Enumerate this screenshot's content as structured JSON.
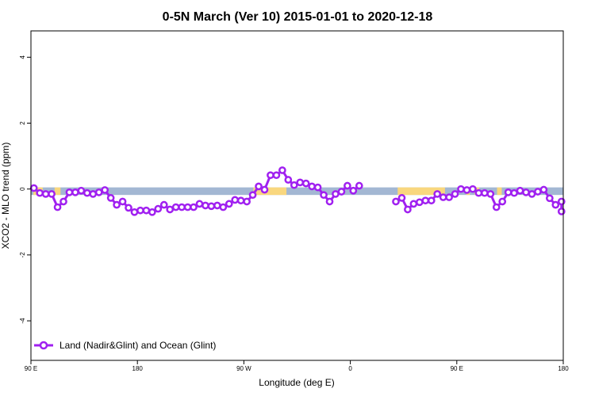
{
  "chart_data": {
    "type": "line",
    "title": "0-5N March (Ver 10)   2015-01-01 to 2020-12-18",
    "xlabel": "Longitude (deg E)",
    "ylabel": "XCO2 - MLO trend (ppm)",
    "xlim": [
      90,
      540
    ],
    "ylim": [
      -5.2,
      4.8
    ],
    "x_ticks": [
      {
        "value": 90,
        "label": "90 E"
      },
      {
        "value": 180,
        "label": "180"
      },
      {
        "value": 270,
        "label": "90 W"
      },
      {
        "value": 360,
        "label": "0"
      },
      {
        "value": 450,
        "label": "90 E"
      },
      {
        "value": 540,
        "label": "180"
      }
    ],
    "y_ticks": [
      {
        "value": 4,
        "label": "4"
      },
      {
        "value": 2,
        "label": "2"
      },
      {
        "value": 0,
        "label": "0"
      },
      {
        "value": -2,
        "label": "-2"
      },
      {
        "value": -4,
        "label": "-4"
      }
    ],
    "band": {
      "y_from": -0.18,
      "y_to": 0.05,
      "color": "#a3b7d3",
      "highlight_color": "#f9d77e",
      "highlight_ranges": [
        [
          92,
          100
        ],
        [
          110,
          115
        ],
        [
          278,
          306
        ],
        [
          400,
          440
        ],
        [
          458,
          461
        ],
        [
          465,
          469
        ],
        [
          484,
          488
        ]
      ]
    },
    "legend": {
      "position": "bottom-left"
    },
    "series": [
      {
        "name": "Land (Nadir&Glint) and Ocean (Glint)",
        "color": "#a020f0",
        "segments": [
          {
            "x": [
              92.5,
              97.5,
              102.5,
              107.5,
              112.5,
              117.5,
              122.5,
              127.5,
              132.5,
              137.5,
              142.5,
              147.5,
              152.5,
              157.5,
              162.5,
              167.5,
              172.5,
              177.5,
              182.5,
              187.5,
              192.5,
              197.5,
              202.5,
              207.5,
              212.5,
              217.5,
              222.5,
              227.5,
              232.5,
              237.5,
              242.5,
              247.5,
              252.5,
              257.5,
              262.5,
              267.5,
              272.5,
              277.5,
              282.5,
              287.5,
              292.5,
              297.5,
              302.5,
              307.5,
              312.5,
              317.5,
              322.5,
              327.5,
              332.5,
              337.5,
              342.5,
              347.5,
              352.5,
              357.5,
              362.5,
              367.5,
              372.5,
              377.5
            ],
            "y": [
              0.03,
              -0.12,
              -0.15,
              -0.15,
              -0.55,
              -0.38,
              -0.1,
              -0.1,
              -0.05,
              -0.12,
              -0.15,
              -0.1,
              -0.03,
              -0.27,
              -0.48,
              -0.38,
              -0.57,
              -0.7,
              -0.65,
              -0.65,
              -0.7,
              -0.6,
              -0.48,
              -0.62,
              -0.55,
              -0.55,
              -0.55,
              -0.55,
              -0.45,
              -0.5,
              -0.52,
              -0.5,
              -0.55,
              -0.45,
              -0.33,
              -0.35,
              -0.38,
              -0.18,
              0.08,
              -0.02,
              0.42,
              0.42,
              0.57,
              0.28,
              0.12,
              0.2,
              0.17,
              0.08,
              0.05,
              -0.18,
              -0.38,
              -0.15,
              -0.08,
              0.1,
              -0.05,
              0.1,
              null,
              null
            ]
          },
          {
            "x": [
              398.5,
              403.5,
              408.5,
              413.5,
              418.5,
              423.5,
              428.5,
              433.5,
              438.5,
              443.5,
              448.5,
              453.5,
              458.5,
              463.5,
              468.5,
              473.5,
              478.5,
              483.5,
              488.5,
              493.5,
              498.5,
              503.5,
              508.5,
              513.5,
              518.5,
              523.5,
              528.5,
              533.5,
              538.5
            ],
            "y": [
              -0.38,
              -0.27,
              -0.62,
              -0.45,
              -0.4,
              -0.35,
              -0.35,
              -0.15,
              -0.25,
              -0.25,
              -0.15,
              0.0,
              -0.03,
              0.0,
              -0.12,
              -0.12,
              -0.15,
              -0.55,
              -0.38,
              -0.1,
              -0.12,
              -0.05,
              -0.1,
              -0.15,
              -0.08,
              -0.02,
              -0.28,
              -0.48,
              -0.38
            ]
          }
        ]
      }
    ],
    "series_tail": {
      "x": [
        538.5
      ],
      "y": [
        -0.68
      ]
    }
  }
}
